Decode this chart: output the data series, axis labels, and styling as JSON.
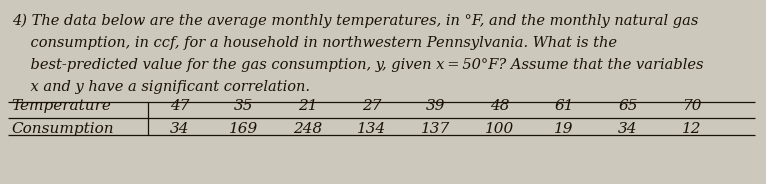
{
  "question_number": "4) ",
  "line1": "The data below are the average monthly temperatures, in °F, and the monthly natural gas",
  "line2": "consumption, in ccf, for a household in northwestern Pennsylvania. What is the",
  "line3": "best-predicted value for the gas consumption, y, given x = 50°F? Assume that the variables",
  "line4": "x and y have a significant correlation.",
  "row_label1": "Temperature",
  "row_label2": "Consumption",
  "temp_values": [
    "47",
    "35",
    "21",
    "27",
    "39",
    "48",
    "61",
    "65",
    "70"
  ],
  "cons_values": [
    "34",
    "169",
    "248",
    "134",
    "137",
    "100",
    "19",
    "34",
    "12"
  ],
  "bg_color": "#cdc8bc",
  "text_color": "#1a1208",
  "font_size_body": 10.5,
  "font_size_table": 11.0,
  "indent": "    "
}
